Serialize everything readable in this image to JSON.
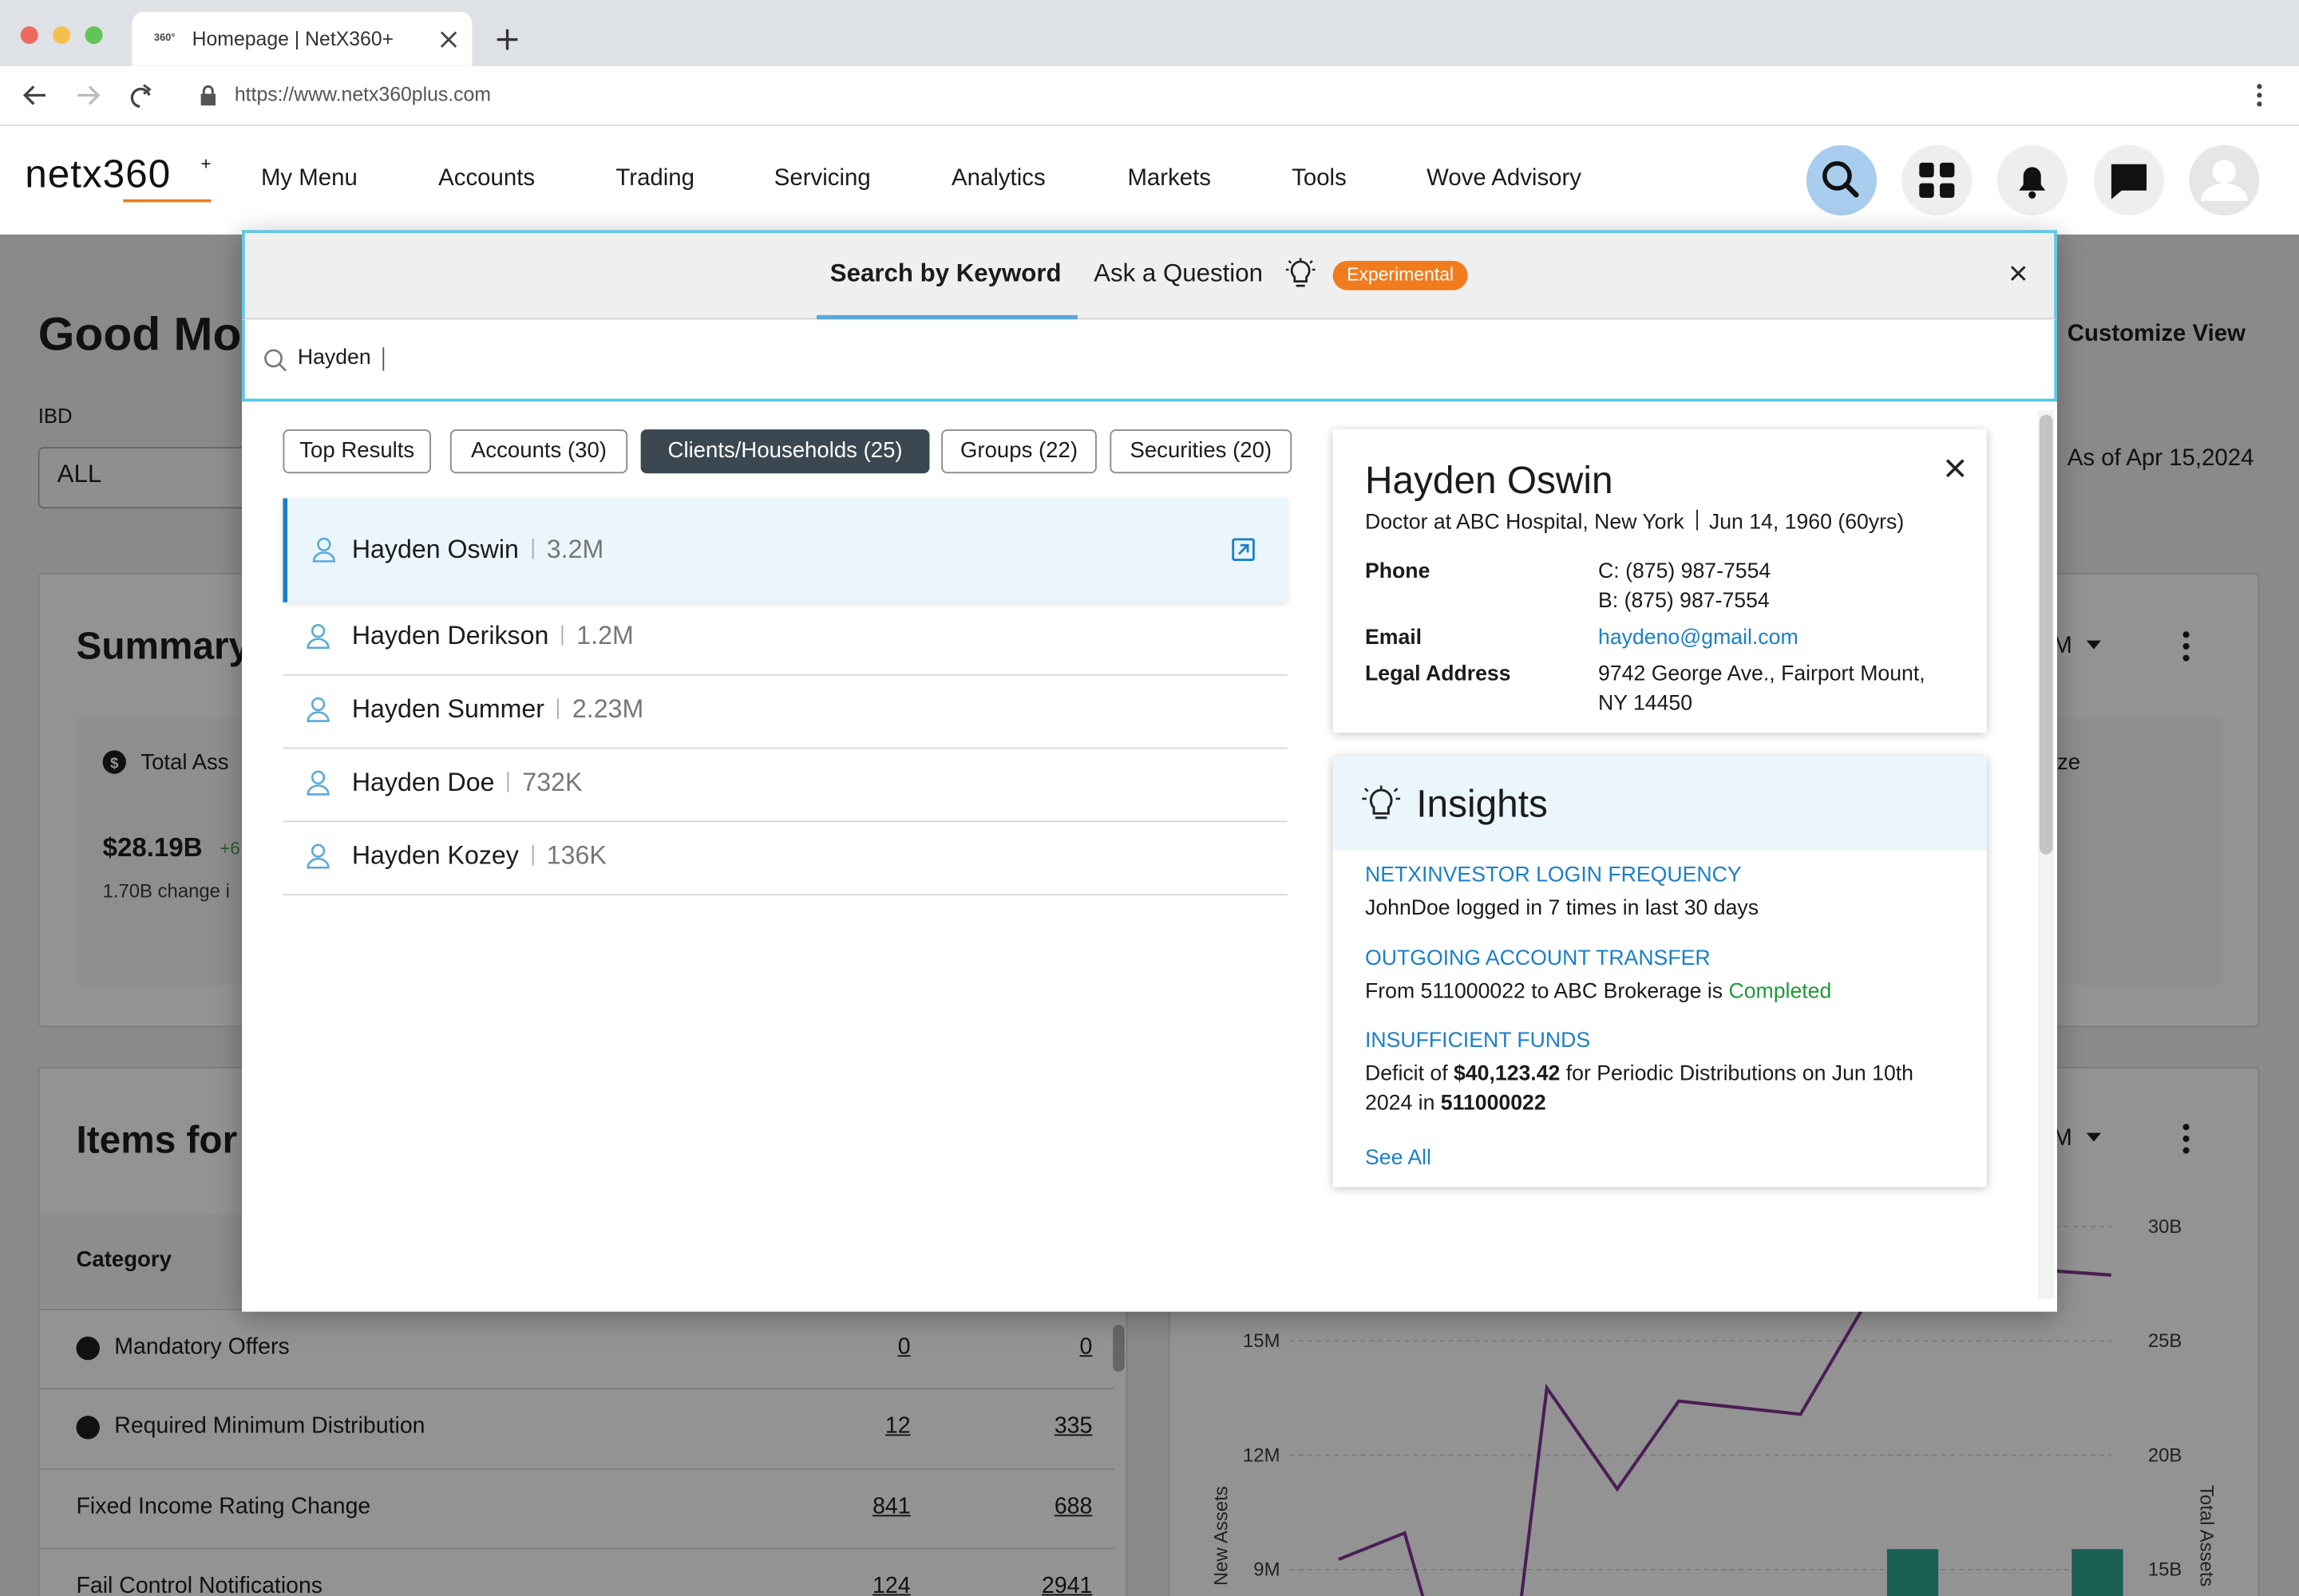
{
  "browser": {
    "tab_icon": "360°",
    "tab_title": "Homepage | NetX360+",
    "url": "https://www.netx360plus.com"
  },
  "header": {
    "logo": "netx360",
    "logo_mark": "+",
    "nav": [
      "My Menu",
      "Accounts",
      "Trading",
      "Servicing",
      "Analytics",
      "Markets",
      "Tools",
      "Wove Advisory"
    ]
  },
  "background": {
    "greeting": "Good Mo",
    "customize": "Customize View",
    "filter_label": "IBD",
    "filter_value": "ALL",
    "as_of": "As of Apr 15,2024",
    "summary": {
      "title": "Summary",
      "metric_label": "Total Ass",
      "metric_value": "$28.19B",
      "metric_delta": "+6",
      "metric_note": "1.70B change i",
      "period": "M",
      "right_label": "ze"
    },
    "items": {
      "title": "Items for",
      "column": "Category",
      "rows": [
        [
          "Mandatory Offers",
          0,
          0
        ],
        [
          "Required Minimum Distribution",
          12,
          335
        ],
        [
          "Fixed Income Rating Change",
          841,
          688
        ],
        [
          "Fail Control Notifications",
          124,
          2941
        ]
      ]
    },
    "chart": {
      "period": "M",
      "left_ticks": [
        "15M",
        "12M",
        "9M"
      ],
      "right_ticks": [
        "30B",
        "25B",
        "20B",
        "15B"
      ],
      "left_axis": "New Assets",
      "right_axis": "Total Assets"
    }
  },
  "search": {
    "tabs": [
      "Search by Keyword",
      "Ask a Question"
    ],
    "badge": "Experimental",
    "query": "Hayden",
    "filters": [
      "Top Results",
      "Accounts (30)",
      "Clients/Households (25)",
      "Groups (22)",
      "Securities (20)"
    ],
    "selected_filter": 2,
    "results": [
      {
        "name": "Hayden Oswin",
        "amount": "3.2M"
      },
      {
        "name": "Hayden Derikson",
        "amount": "1.2M"
      },
      {
        "name": "Hayden Summer",
        "amount": "2.23M"
      },
      {
        "name": "Hayden Doe",
        "amount": "732K"
      },
      {
        "name": "Hayden Kozey",
        "amount": "136K"
      }
    ],
    "detail": {
      "name": "Hayden Oswin",
      "occupation": "Doctor at ABC Hospital, New York",
      "birth": "Jun 14, 1960 (60yrs)",
      "phone_label": "Phone",
      "phones": [
        "C: (875) 987-7554",
        "B: (875) 987-7554"
      ],
      "email_label": "Email",
      "email": "haydeno@gmail.com",
      "address_label": "Legal Address",
      "address": [
        "9742 George Ave., Fairport Mount,",
        "NY 14450"
      ]
    },
    "insights": {
      "title": "Insights",
      "items": [
        {
          "title": "NETXINVESTOR LOGIN FREQUENCY",
          "text": "JohnDoe logged in 7 times in last 30 days"
        },
        {
          "title": "OUTGOING ACCOUNT TRANSFER",
          "text": "From 511000022 to ABC Brokerage is",
          "status": "Completed"
        },
        {
          "title": "INSUFFICIENT FUNDS",
          "text": [
            "Deficit of",
            "$40,123.42",
            "for Periodic Distributions on Jun 10th 2024 in",
            "511000022"
          ]
        }
      ],
      "see_all": "See All"
    }
  }
}
